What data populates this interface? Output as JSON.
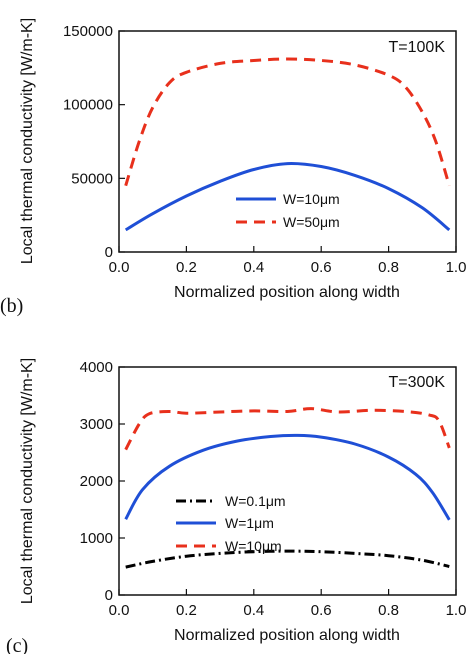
{
  "chart_data": [
    {
      "type": "line",
      "panel_label": "(b)",
      "annotation": "T=100K",
      "xlabel": "Normalized position along width",
      "ylabel": "Local thermal conductivity [W/m-K]",
      "xlim": [
        0,
        1.0
      ],
      "ylim": [
        0,
        150000
      ],
      "xticks": [
        "0.0",
        "0.2",
        "0.4",
        "0.6",
        "0.8",
        "1.0"
      ],
      "yticks": [
        "0",
        "50000",
        "100000",
        "150000"
      ],
      "xtick_values": [
        0,
        0.2,
        0.4,
        0.6,
        0.8,
        1.0
      ],
      "ytick_values": [
        0,
        50000,
        100000,
        150000
      ],
      "legend_position": "lower-center",
      "series": [
        {
          "name": "W=10μm",
          "color": "#1f4fd6",
          "style": "solid",
          "x": [
            0.02,
            0.1,
            0.2,
            0.3,
            0.4,
            0.5,
            0.6,
            0.7,
            0.8,
            0.9,
            0.98
          ],
          "y": [
            15000,
            26000,
            38000,
            48000,
            56000,
            60000,
            58000,
            52000,
            43000,
            30000,
            15000
          ]
        },
        {
          "name": "W=50μm",
          "color": "#e8301c",
          "style": "dashed",
          "x": [
            0.02,
            0.06,
            0.1,
            0.15,
            0.2,
            0.3,
            0.4,
            0.5,
            0.6,
            0.7,
            0.8,
            0.85,
            0.9,
            0.94,
            0.98
          ],
          "y": [
            45000,
            75000,
            98000,
            115000,
            122000,
            128000,
            130000,
            131000,
            130000,
            127000,
            120000,
            112000,
            95000,
            75000,
            45000
          ]
        }
      ]
    },
    {
      "type": "line",
      "panel_label": "(c)",
      "annotation": "T=300K",
      "xlabel": "Normalized position along width",
      "ylabel": "Local thermal conductivity [W/m-K]",
      "xlim": [
        0,
        1.0
      ],
      "ylim": [
        0,
        4000
      ],
      "xticks": [
        "0.0",
        "0.2",
        "0.4",
        "0.6",
        "0.8",
        "1.0"
      ],
      "yticks": [
        "0",
        "1000",
        "2000",
        "3000",
        "4000"
      ],
      "xtick_values": [
        0,
        0.2,
        0.4,
        0.6,
        0.8,
        1.0
      ],
      "ytick_values": [
        0,
        1000,
        2000,
        3000,
        4000
      ],
      "legend_position": "lower-center",
      "series": [
        {
          "name": "W=0.1μm",
          "color": "#000000",
          "style": "dashdot",
          "x": [
            0.02,
            0.1,
            0.2,
            0.3,
            0.4,
            0.5,
            0.6,
            0.7,
            0.8,
            0.9,
            0.98
          ],
          "y": [
            490,
            590,
            680,
            730,
            760,
            770,
            760,
            730,
            690,
            610,
            500
          ]
        },
        {
          "name": "W=1μm",
          "color": "#1f4fd6",
          "style": "solid",
          "x": [
            0.02,
            0.07,
            0.15,
            0.25,
            0.35,
            0.45,
            0.53,
            0.6,
            0.7,
            0.8,
            0.88,
            0.93,
            0.98
          ],
          "y": [
            1330,
            1850,
            2260,
            2540,
            2700,
            2780,
            2800,
            2770,
            2650,
            2420,
            2120,
            1800,
            1320
          ]
        },
        {
          "name": "W=10μm",
          "color": "#e8301c",
          "style": "dashed",
          "x": [
            0.02,
            0.06,
            0.09,
            0.15,
            0.2,
            0.3,
            0.4,
            0.5,
            0.57,
            0.65,
            0.75,
            0.85,
            0.92,
            0.95,
            0.98
          ],
          "y": [
            2550,
            3000,
            3180,
            3220,
            3190,
            3210,
            3230,
            3220,
            3270,
            3210,
            3240,
            3220,
            3160,
            3050,
            2580
          ]
        }
      ]
    }
  ]
}
